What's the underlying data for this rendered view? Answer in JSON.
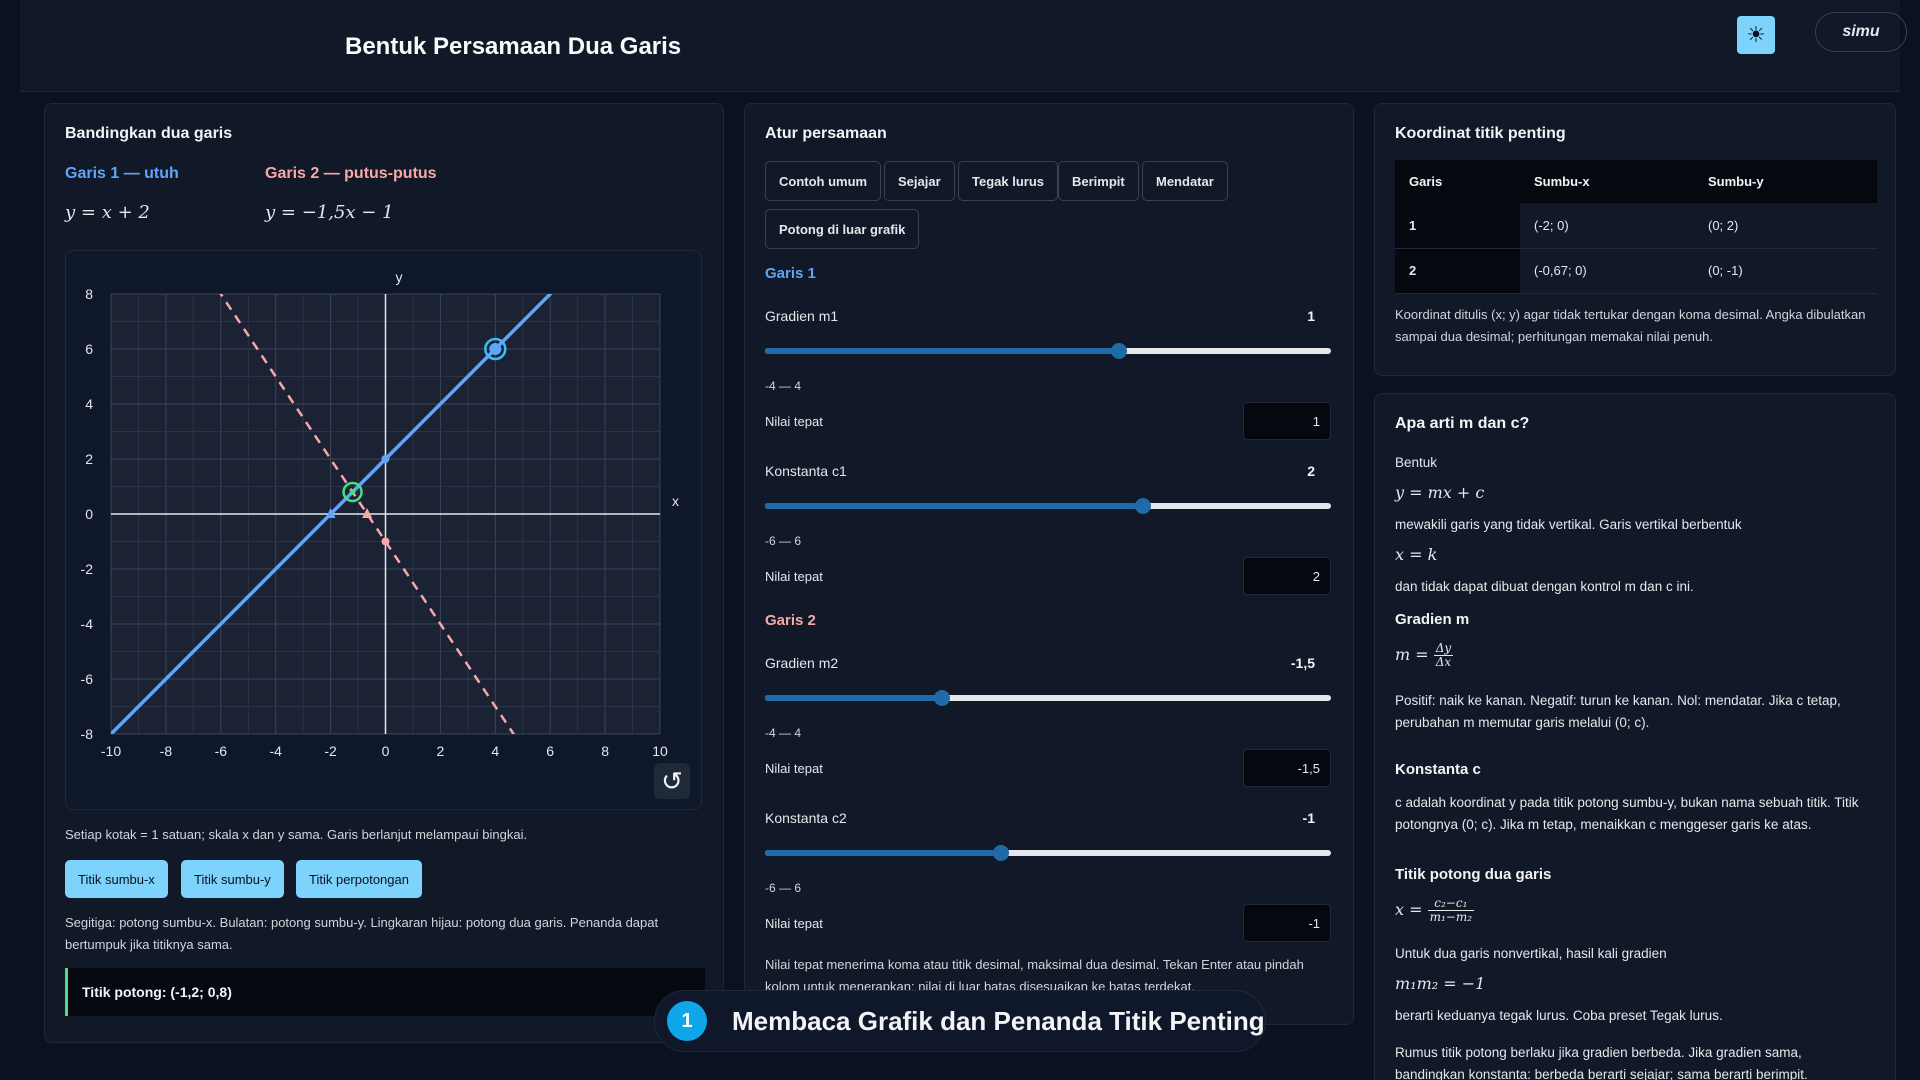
{
  "header": {
    "title": "Bentuk Persamaan Dua Garis",
    "theme_icon": "sun-icon",
    "logo": "simu"
  },
  "left": {
    "title": "Bandingkan dua garis",
    "line1": {
      "label": "Garis 1 — utuh",
      "equation": "y = x + 2",
      "color": "#60a5fa"
    },
    "line2": {
      "label": "Garis 2 — putus-putus",
      "equation": "y = −1,5x − 1",
      "color": "#f9a8a8"
    },
    "graph": {
      "x_axis_label": "x",
      "y_axis_label": "y",
      "x_ticks": [
        "-10",
        "-8",
        "-6",
        "-4",
        "-2",
        "0",
        "2",
        "4",
        "6",
        "8",
        "10"
      ],
      "y_ticks": [
        "8",
        "6",
        "4",
        "2",
        "0",
        "-2",
        "-4",
        "-6",
        "-8"
      ]
    },
    "note": "Setiap kotak = 1 satuan; skala x dan y sama. Garis berlanjut melampaui bingkai.",
    "buttons": [
      "Titik sumbu-x",
      "Titik sumbu-y",
      "Titik perpotongan"
    ],
    "legend_note": "Segitiga: potong sumbu-x. Bulatan: potong sumbu-y. Lingkaran hijau: potong dua garis. Penanda dapat bertumpuk jika titiknya sama.",
    "result": "Titik potong: (-1,2; 0,8)"
  },
  "chart_data": {
    "type": "line",
    "xlim": [
      -10,
      10
    ],
    "ylim": [
      -8,
      8
    ],
    "grid": true,
    "series": [
      {
        "name": "Garis 1 — utuh",
        "slope": 1,
        "intercept": 2,
        "style": "solid",
        "color": "#60a5fa"
      },
      {
        "name": "Garis 2 — putus-putus",
        "slope": -1.5,
        "intercept": -1,
        "style": "dashed",
        "color": "#f9a8a8"
      }
    ],
    "markers": {
      "x_intercepts": [
        [
          -2,
          0
        ],
        [
          -0.67,
          0
        ]
      ],
      "y_intercepts": [
        [
          0,
          2
        ],
        [
          0,
          -1
        ]
      ],
      "intersection": [
        -1.2,
        0.8
      ],
      "handle": [
        4,
        6
      ]
    }
  },
  "mid": {
    "title": "Atur persamaan",
    "presets": [
      "Contoh umum",
      "Sejajar",
      "Tegak lurus",
      "Berimpit",
      "Mendatar",
      "Potong di luar grafik"
    ],
    "garis1_heading": "Garis 1",
    "garis2_heading": "Garis 2",
    "exact_label": "Nilai tepat",
    "controls": [
      {
        "label": "Gradien m1",
        "value": "1",
        "range": "-4 — 4",
        "input": "1",
        "fraction": 0.625
      },
      {
        "label": "Konstanta c1",
        "value": "2",
        "range": "-6 — 6",
        "input": "2",
        "fraction": 0.667
      },
      {
        "label": "Gradien m2",
        "value": "-1,5",
        "range": "-4 — 4",
        "input": "-1,5",
        "fraction": 0.3125
      },
      {
        "label": "Konstanta c2",
        "value": "-1",
        "range": "-6 — 6",
        "input": "-1",
        "fraction": 0.417
      }
    ],
    "footnote": "Nilai tepat menerima koma atau titik desimal, maksimal dua desimal. Tekan Enter atau pindah kolom untuk menerapkan; nilai di luar batas disesuaikan ke batas terdekat."
  },
  "table": {
    "title": "Koordinat titik penting",
    "headers": [
      "Garis",
      "Sumbu-x",
      "Sumbu-y"
    ],
    "rows": [
      [
        "1",
        "(-2; 0)",
        "(0; 2)"
      ],
      [
        "2",
        "(-0,67; 0)",
        "(0; -1)"
      ]
    ],
    "note": "Koordinat ditulis (x; y) agar tidak tertukar dengan koma desimal. Angka dibulatkan sampai dua desimal; perhitungan memakai nilai penuh."
  },
  "info": {
    "title": "Apa arti m dan c?",
    "p_bentuk": "Bentuk",
    "eq_general": "y = mx + c",
    "p_nonvertical": "mewakili garis yang tidak vertikal. Garis vertikal berbentuk",
    "eq_vertical": "x = k",
    "p_cannot": "dan tidak dapat dibuat dengan kontrol m dan c ini.",
    "h_gradien": "Gradien m",
    "gradien_lhs": "m =",
    "gradien_num": "Δy",
    "gradien_den": "Δx",
    "p_gradien": "Positif: naik ke kanan. Negatif: turun ke kanan. Nol: mendatar. Jika c tetap, perubahan m memutar garis melalui (0; c).",
    "h_konstanta": "Konstanta c",
    "p_konstanta": "c adalah koordinat y pada titik potong sumbu-y, bukan nama sebuah titik. Titik potongnya (0; c). Jika m tetap, menaikkan c menggeser garis ke atas.",
    "h_potong": "Titik potong dua garis",
    "potong_lhs": "x =",
    "potong_num": "c₂−c₁",
    "potong_den": "m₁−m₂",
    "p_nonvertikal": "Untuk dua garis nonvertikal, hasil kali gradien",
    "eq_perp": "m₁m₂ = −1",
    "p_perp": "berarti keduanya tegak lurus. Coba preset Tegak lurus.",
    "p_last": "Rumus titik potong berlaku jika gradien berbeda. Jika gradien sama, bandingkan konstanta: berbeda berarti sejajar; sama berarti berimpit."
  },
  "banner": {
    "step": "1",
    "text": "Membaca Grafik dan Penanda Titik Penting"
  }
}
